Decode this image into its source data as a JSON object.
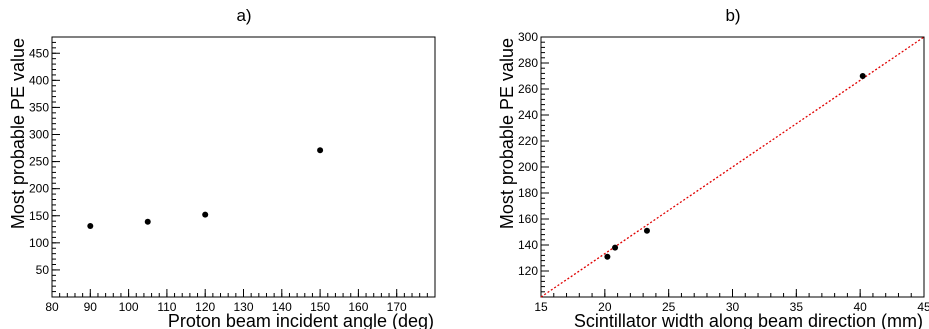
{
  "chart_data": [
    {
      "type": "scatter",
      "title": "a)",
      "xlabel": "Proton beam incident angle (deg)",
      "ylabel": "Most probable PE value",
      "xlim": [
        80,
        180
      ],
      "ylim": [
        0,
        480
      ],
      "xticks": [
        80,
        90,
        100,
        110,
        120,
        130,
        140,
        150,
        160,
        170
      ],
      "yticks": [
        50,
        100,
        150,
        200,
        250,
        300,
        350,
        400,
        450
      ],
      "minor_x_step": 2,
      "minor_y_step": 10,
      "grid": false,
      "series": [
        {
          "x": [
            90,
            105,
            120,
            150
          ],
          "y": [
            131,
            139,
            152,
            271
          ]
        }
      ]
    },
    {
      "type": "scatter",
      "title": "b)",
      "xlabel": "Scintillator width along beam direction (mm)",
      "ylabel": "Most probable PE value",
      "xlim": [
        15,
        45
      ],
      "ylim": [
        100,
        300
      ],
      "xticks": [
        15,
        20,
        25,
        30,
        35,
        40,
        45
      ],
      "yticks": [
        120,
        140,
        160,
        180,
        200,
        220,
        240,
        260,
        280,
        300
      ],
      "minor_x_step": 1,
      "minor_y_step": 4,
      "grid": false,
      "fit_line": {
        "style": "dotted",
        "color": "#e00000",
        "points": [
          [
            15,
            100
          ],
          [
            45,
            300
          ]
        ]
      },
      "series": [
        {
          "x": [
            20.2,
            20.8,
            23.3,
            40.2
          ],
          "y": [
            131,
            138,
            151,
            270
          ]
        }
      ]
    }
  ]
}
